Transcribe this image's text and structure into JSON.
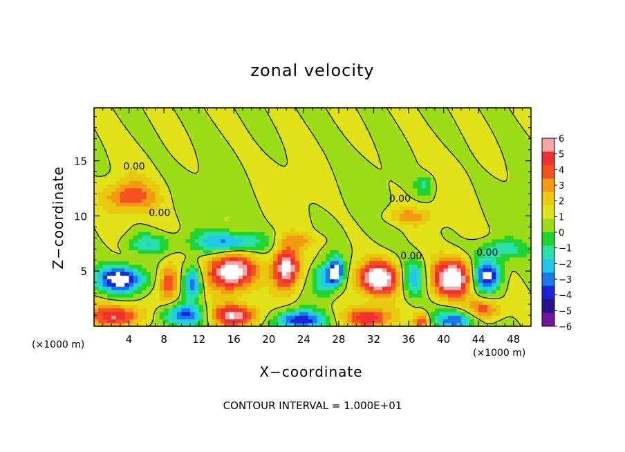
{
  "chart_data": {
    "type": "heatmap",
    "title": "zonal velocity",
    "xlabel": "X−coordinate",
    "ylabel": "Z−coordinate",
    "x_unit": "(×1000 m)",
    "footnote": "CONTOUR INTERVAL = 1.000E+01",
    "xlim": [
      0,
      50
    ],
    "ylim": [
      0,
      19.8
    ],
    "x_ticks": [
      4,
      8,
      12,
      16,
      20,
      24,
      28,
      32,
      36,
      40,
      44,
      48
    ],
    "y_ticks": [
      5,
      10,
      15
    ],
    "colorbar": {
      "ticks": [
        "6",
        "5",
        "4",
        "3",
        "2",
        "1",
        "0",
        "−1",
        "−2",
        "−3",
        "−4",
        "−5",
        "−6"
      ],
      "colors": [
        "#f4a6a6",
        "#ee3030",
        "#f45020",
        "#f59a14",
        "#e8c910",
        "#e2e21a",
        "#9cdc16",
        "#22d432",
        "#28e0a8",
        "#22c8ea",
        "#1a78ee",
        "#1c24d8",
        "#2a108a",
        "#74149c"
      ]
    },
    "contour_labels": [
      {
        "text": "0.00",
        "x": 4.6,
        "z": 14.5
      },
      {
        "text": "0.00",
        "x": 7.5,
        "z": 10.3
      },
      {
        "text": "0.00",
        "x": 35.0,
        "z": 11.6
      },
      {
        "text": "0.00",
        "x": 36.3,
        "z": 6.4
      },
      {
        "text": "0.00",
        "x": 45.0,
        "z": 6.7
      }
    ],
    "features": [
      {
        "kind": "pos",
        "x": 4.0,
        "z": 11.8,
        "rx": 2.8,
        "rz": 1.3,
        "amp": 3.5
      },
      {
        "kind": "neg",
        "x": 3.0,
        "z": 4.3,
        "rx": 2.8,
        "rz": 1.2,
        "amp": 7
      },
      {
        "kind": "pos",
        "x": 8.6,
        "z": 4.0,
        "rx": 1.2,
        "rz": 1.6,
        "amp": 4.5
      },
      {
        "kind": "neg",
        "x": 11.3,
        "z": 4.0,
        "rx": 1.1,
        "rz": 1.5,
        "amp": 5
      },
      {
        "kind": "neg",
        "x": 10.3,
        "z": 1.0,
        "rx": 2.6,
        "rz": 1.0,
        "amp": 5
      },
      {
        "kind": "pos",
        "x": 15.7,
        "z": 5.0,
        "rx": 2.6,
        "rz": 1.7,
        "amp": 7.5
      },
      {
        "kind": "neg",
        "x": 15.5,
        "z": 7.6,
        "rx": 4.0,
        "rz": 1.0,
        "amp": 4.5
      },
      {
        "kind": "pos",
        "x": 22.0,
        "z": 5.3,
        "rx": 1.5,
        "rz": 1.9,
        "amp": 7
      },
      {
        "kind": "neg",
        "x": 26.4,
        "z": 4.3,
        "rx": 1.4,
        "rz": 1.5,
        "amp": 4
      },
      {
        "kind": "neg",
        "x": 27.7,
        "z": 5.0,
        "rx": 0.9,
        "rz": 1.2,
        "amp": 6
      },
      {
        "kind": "pos",
        "x": 32.5,
        "z": 4.4,
        "rx": 2.4,
        "rz": 1.5,
        "amp": 7.5
      },
      {
        "kind": "neg",
        "x": 36.5,
        "z": 4.4,
        "rx": 1.3,
        "rz": 1.6,
        "amp": 4
      },
      {
        "kind": "pos",
        "x": 41.0,
        "z": 4.4,
        "rx": 2.2,
        "rz": 1.7,
        "amp": 7.5
      },
      {
        "kind": "neg",
        "x": 45.0,
        "z": 4.7,
        "rx": 1.5,
        "rz": 1.4,
        "amp": 7
      },
      {
        "kind": "pos",
        "x": 2.5,
        "z": 1.0,
        "rx": 3.0,
        "rz": 1.0,
        "amp": 5
      },
      {
        "kind": "pos",
        "x": 16.0,
        "z": 1.0,
        "rx": 2.8,
        "rz": 1.0,
        "amp": 6
      },
      {
        "kind": "neg",
        "x": 23.5,
        "z": 0.6,
        "rx": 2.7,
        "rz": 0.9,
        "amp": 6
      },
      {
        "kind": "pos",
        "x": 31.5,
        "z": 0.8,
        "rx": 2.6,
        "rz": 1.0,
        "amp": 5
      },
      {
        "kind": "pos",
        "x": 37.5,
        "z": 0.5,
        "rx": 0.9,
        "rz": 0.7,
        "amp": 4
      },
      {
        "kind": "neg",
        "x": 41.5,
        "z": 0.6,
        "rx": 2.5,
        "rz": 0.9,
        "amp": 5
      },
      {
        "kind": "pos",
        "x": 44.5,
        "z": 1.5,
        "rx": 2.0,
        "rz": 0.9,
        "amp": 4
      },
      {
        "kind": "neg",
        "x": 6.0,
        "z": 7.5,
        "rx": 2.5,
        "rz": 0.9,
        "amp": 2.8
      },
      {
        "kind": "neg",
        "x": 46.5,
        "z": 7.0,
        "rx": 3.0,
        "rz": 0.9,
        "amp": 2.5
      },
      {
        "kind": "neg",
        "x": 37.8,
        "z": 12.8,
        "rx": 1.2,
        "rz": 1.0,
        "amp": 2.2
      },
      {
        "kind": "pos",
        "x": 36.0,
        "z": 10.0,
        "rx": 3.0,
        "rz": 0.8,
        "amp": 2.2
      },
      {
        "kind": "pos",
        "x": 23.5,
        "z": 7.8,
        "rx": 2.5,
        "rz": 0.6,
        "amp": 1.8
      }
    ]
  }
}
